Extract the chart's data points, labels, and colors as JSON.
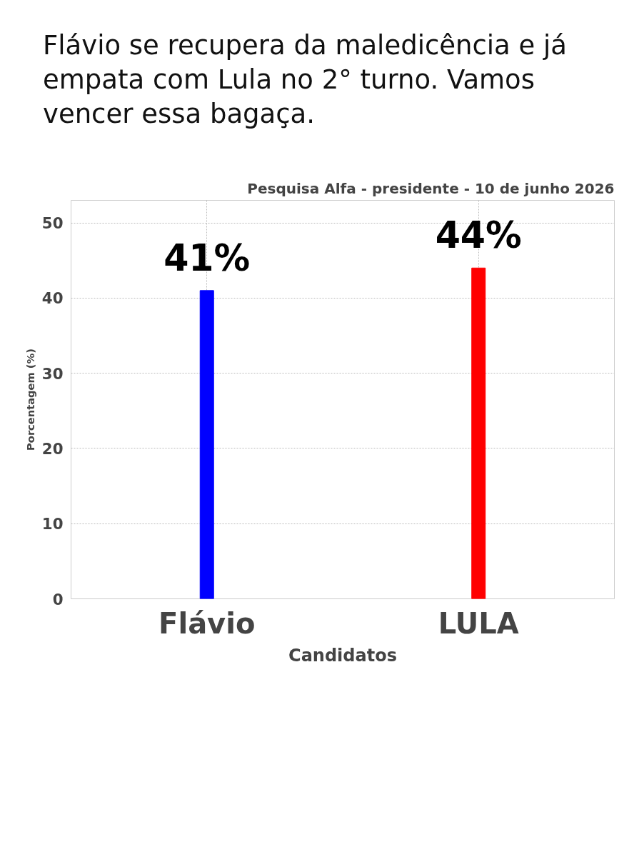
{
  "chart_data": {
    "type": "bar",
    "title": "Pesquisa Alfa - presidente - 10 de junho 2026",
    "annotations": [
      "Flávio se recupera da maledicência e já empata com Lula no 2° turno. Vamos vencer essa bagaça."
    ],
    "xlabel": "Candidatos",
    "ylabel": "Porcentagem (%)",
    "categories": [
      "Flávio",
      "LULA"
    ],
    "values": [
      41,
      44
    ],
    "colors": [
      "#0000ff",
      "#ff0000"
    ],
    "value_labels": [
      "41%",
      "44%"
    ],
    "ylim": [
      0,
      53
    ],
    "yticks": [
      0,
      10,
      20,
      30,
      40,
      50
    ],
    "grid": true
  }
}
